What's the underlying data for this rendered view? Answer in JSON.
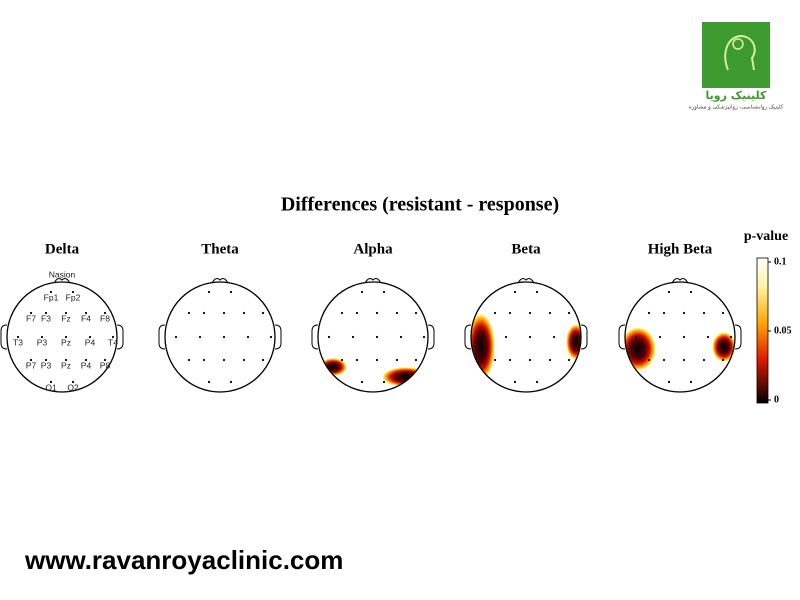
{
  "logo": {
    "name": "کلینیک رویا",
    "subtitle": "کلینیک روانشناسی، روانپزشکی و مشاوره"
  },
  "figure": {
    "title": "Differences (resistant - response)",
    "panels": [
      "Delta",
      "Theta",
      "Alpha",
      "Beta",
      "High Beta"
    ],
    "electrodes": [
      "Nasion",
      "Fp1",
      "Fp2",
      "F7",
      "F3",
      "Fz",
      "F4",
      "F8",
      "T3",
      "P3",
      "Pz",
      "P4",
      "T4",
      "P7",
      "P3",
      "Pz",
      "P4",
      "P8",
      "O1",
      "O2"
    ],
    "colorbar": {
      "label": "p-value",
      "ticks": [
        0,
        0.05,
        0.1
      ]
    }
  },
  "footer": {
    "website": "www.ravanroyaclinic.com"
  }
}
